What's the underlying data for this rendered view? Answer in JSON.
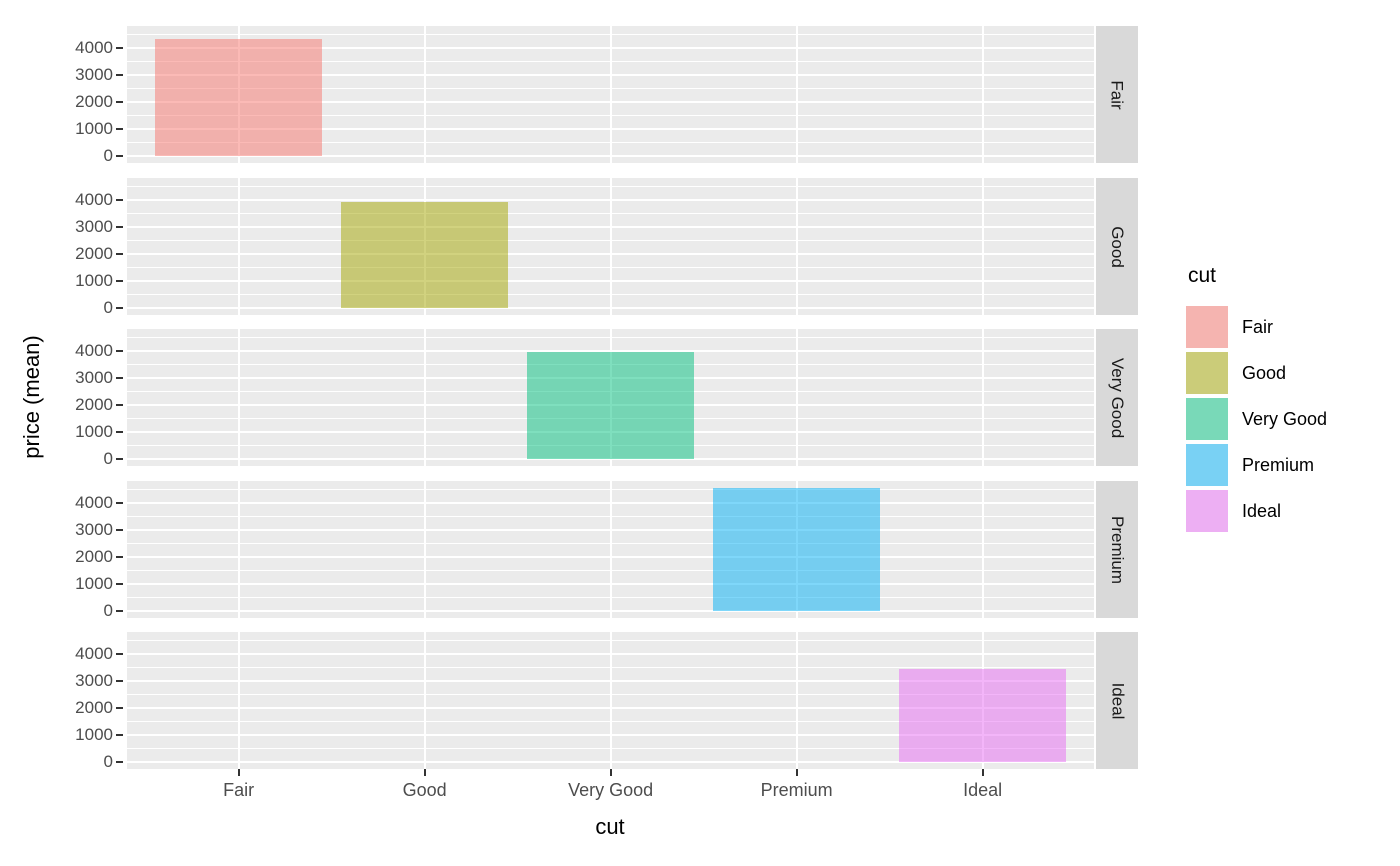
{
  "chart_data": {
    "type": "bar",
    "title": "",
    "xlabel": "cut",
    "ylabel": "price (mean)",
    "categories": [
      "Fair",
      "Good",
      "Very Good",
      "Premium",
      "Ideal"
    ],
    "series": [
      {
        "name": "price (mean)",
        "values": [
          4358.76,
          3928.86,
          3981.76,
          4584.26,
          3457.54
        ]
      }
    ],
    "facets": {
      "labels": [
        "Fair",
        "Good",
        "Very Good",
        "Premium",
        "Ideal"
      ],
      "position": "right"
    },
    "bar_colors": [
      "#F8766D",
      "#A3A500",
      "#00BF7D",
      "#00B0F6",
      "#E76BF3"
    ],
    "bar_alpha": 0.5,
    "y_ticks": [
      0,
      1000,
      2000,
      3000,
      4000
    ],
    "y_minor_ticks": [
      500,
      1500,
      2500,
      3500,
      4500
    ],
    "ylim": [
      -270,
      4830
    ],
    "grid": true,
    "legend": {
      "title": "cut",
      "position": "right",
      "entries": [
        "Fair",
        "Good",
        "Very Good",
        "Premium",
        "Ideal"
      ]
    }
  },
  "colors": {
    "panel_bg": "#EBEBEB",
    "gridline": "#FFFFFF",
    "strip_bg": "#D9D9D9",
    "axis_text": "#4D4D4D",
    "strip_text": "#1A1A1A",
    "title_text": "#000000",
    "tick_mark": "#333333",
    "legend_key_bg": "#F2F2F2"
  }
}
